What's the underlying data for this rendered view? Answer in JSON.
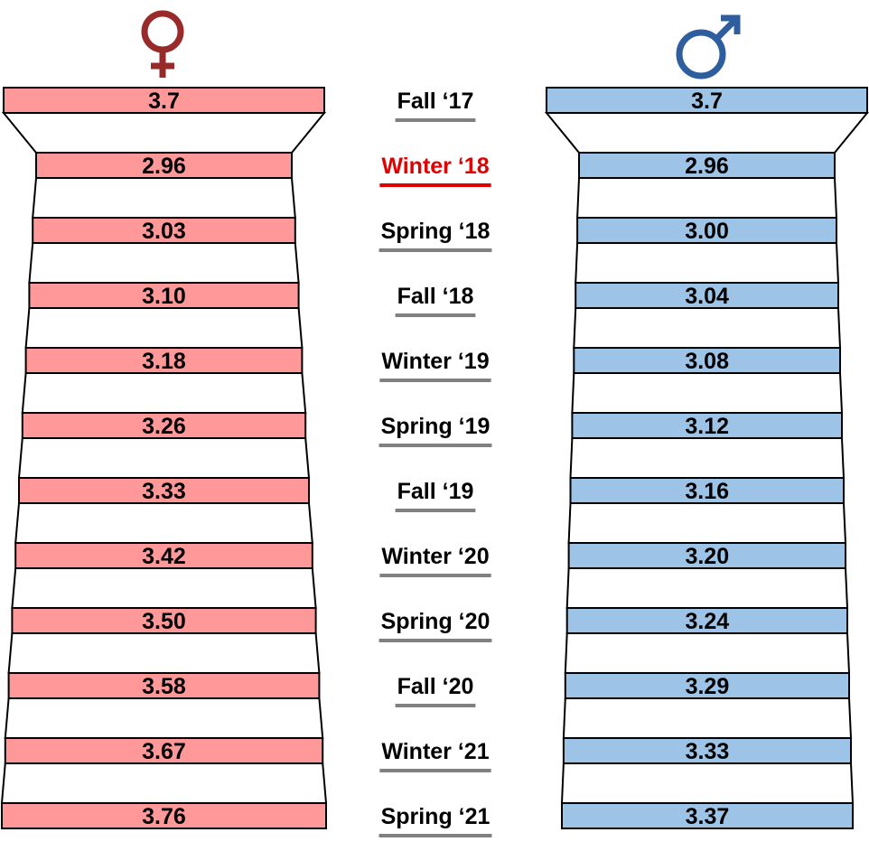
{
  "chart_data": {
    "type": "table",
    "title": "",
    "columns": [
      "female",
      "male"
    ],
    "terms": [
      "Fall ‘17",
      "Winter ‘18",
      "Spring  ‘18",
      "Fall ‘18",
      "Winter ‘19",
      "Spring  ‘19",
      "Fall ‘19",
      "Winter ‘20",
      "Spring  ‘20",
      "Fall ‘20",
      "Winter ‘21",
      "Spring  ‘21"
    ],
    "highlighted_term_index": 1,
    "series": [
      {
        "name": "female",
        "symbol": "♀",
        "values": [
          "3.7",
          "2.96",
          "3.03",
          "3.10",
          "3.18",
          "3.26",
          "3.33",
          "3.42",
          "3.50",
          "3.58",
          "3.67",
          "3.76"
        ]
      },
      {
        "name": "male",
        "symbol": "♂",
        "values": [
          "3.7",
          "2.96",
          "3.00",
          "3.04",
          "3.08",
          "3.12",
          "3.16",
          "3.20",
          "3.24",
          "3.29",
          "3.33",
          "3.37"
        ]
      }
    ]
  },
  "colors": {
    "female_fill": "#ff9999",
    "male_fill": "#9dc3e6",
    "female_symbol": "#992a2a",
    "male_symbol": "#2e5e9e",
    "highlight": "#e00000",
    "underline": "#808080",
    "stroke": "#000000",
    "text": "#000000"
  }
}
